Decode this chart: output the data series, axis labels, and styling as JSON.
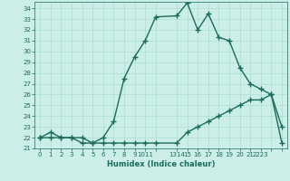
{
  "xlabel": "Humidex (Indice chaleur)",
  "bg_color": "#cceee8",
  "line_color": "#1a6b5a",
  "grid_color": "#aaddcc",
  "ylim": [
    21,
    34.6
  ],
  "xlim": [
    -0.5,
    23.5
  ],
  "yticks": [
    21,
    22,
    23,
    24,
    25,
    26,
    27,
    28,
    29,
    30,
    31,
    32,
    33,
    34
  ],
  "xtick_positions": [
    0,
    1,
    2,
    3,
    4,
    5,
    6,
    7,
    8,
    9,
    10,
    11,
    13,
    14,
    15,
    16,
    17,
    18,
    19,
    20,
    21,
    22,
    23
  ],
  "xtick_labels": [
    "0",
    "1",
    "2",
    "3",
    "4",
    "5",
    "6",
    "7",
    "8",
    "9",
    "1011",
    "",
    "1314",
    "15",
    "16",
    "17",
    "18",
    "19",
    "20",
    "21",
    "2223",
    "",
    ""
  ],
  "curve1_x": [
    0,
    1,
    2,
    3,
    4,
    5,
    6,
    7,
    8,
    9,
    10,
    11,
    13,
    14,
    15,
    16,
    17,
    18,
    19,
    20,
    21,
    22,
    23
  ],
  "curve1_y": [
    22.0,
    22.5,
    22.0,
    22.0,
    21.5,
    21.5,
    22.0,
    23.5,
    27.5,
    29.5,
    31.0,
    33.2,
    33.3,
    34.5,
    32.0,
    33.5,
    31.3,
    31.0,
    28.5,
    27.0,
    26.5,
    26.0,
    23.0
  ],
  "curve2_x": [
    0,
    1,
    2,
    3,
    4,
    5,
    6,
    7,
    8,
    9,
    10,
    11,
    13,
    14,
    15,
    16,
    17,
    18,
    19,
    20,
    21,
    22,
    23
  ],
  "curve2_y": [
    22.0,
    22.0,
    22.0,
    22.0,
    22.0,
    21.5,
    21.5,
    21.5,
    21.5,
    21.5,
    21.5,
    21.5,
    21.5,
    22.5,
    23.0,
    23.5,
    24.0,
    24.5,
    25.0,
    25.5,
    25.5,
    26.0,
    21.5
  ],
  "marker": "+",
  "markersize": 4,
  "linewidth": 1.0
}
